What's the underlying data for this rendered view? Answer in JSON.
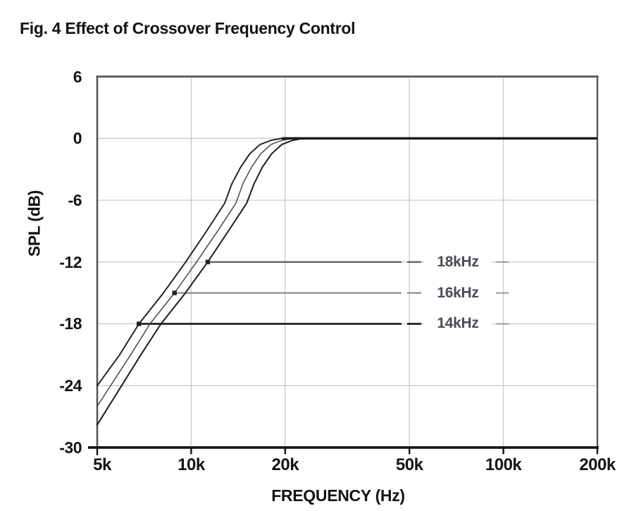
{
  "figure_title": "Fig. 4 Effect of Crossover Frequency Control",
  "chart_data": {
    "type": "line",
    "title": "Fig. 4 Effect of Crossover Frequency Control",
    "xlabel": "FREQUENCY (Hz)",
    "ylabel": "SPL (dB)",
    "x_scale": "log",
    "xlim": [
      5000,
      200000
    ],
    "ylim": [
      -30,
      6
    ],
    "grid": true,
    "x_ticks": [
      {
        "value": 5000,
        "label": "5k"
      },
      {
        "value": 10000,
        "label": "10k"
      },
      {
        "value": 20000,
        "label": "20k"
      },
      {
        "value": 50000,
        "label": "50k"
      },
      {
        "value": 100000,
        "label": "100k"
      },
      {
        "value": 200000,
        "label": "200k"
      }
    ],
    "y_ticks": [
      {
        "value": 6,
        "label": "6"
      },
      {
        "value": 0,
        "label": "0"
      },
      {
        "value": -6,
        "label": "-6"
      },
      {
        "value": -12,
        "label": "-12"
      },
      {
        "value": -18,
        "label": "-18"
      },
      {
        "value": -24,
        "label": "-24"
      },
      {
        "value": -30,
        "label": "-30"
      }
    ],
    "series": [
      {
        "name": "14kHz",
        "color": "#1c1c1c",
        "width": 1.9,
        "points": [
          [
            5000,
            -24
          ],
          [
            5900,
            -21
          ],
          [
            6800,
            -18
          ],
          [
            8150,
            -15
          ],
          [
            9600,
            -12
          ],
          [
            11200,
            -9
          ],
          [
            12800,
            -6.3
          ],
          [
            13500,
            -4.4
          ],
          [
            14400,
            -2.8
          ],
          [
            15400,
            -1.5
          ],
          [
            16600,
            -0.6
          ],
          [
            18000,
            -0.2
          ],
          [
            19500,
            0
          ]
        ]
      },
      {
        "name": "16kHz",
        "color": "#464646",
        "width": 1.5,
        "points": [
          [
            5000,
            -26
          ],
          [
            6400,
            -21
          ],
          [
            7380,
            -18
          ],
          [
            8840,
            -15
          ],
          [
            10400,
            -12
          ],
          [
            12150,
            -9
          ],
          [
            13900,
            -6.3
          ],
          [
            14650,
            -4.4
          ],
          [
            15600,
            -2.8
          ],
          [
            16700,
            -1.5
          ],
          [
            18000,
            -0.6
          ],
          [
            19500,
            -0.2
          ],
          [
            21200,
            0
          ]
        ]
      },
      {
        "name": "18kHz",
        "color": "#1c1c1c",
        "width": 2.0,
        "points": [
          [
            5000,
            -27.8
          ],
          [
            6900,
            -21
          ],
          [
            8000,
            -18
          ],
          [
            9580,
            -15
          ],
          [
            11300,
            -12
          ],
          [
            13150,
            -9
          ],
          [
            15050,
            -6.3
          ],
          [
            15900,
            -4.4
          ],
          [
            16900,
            -2.8
          ],
          [
            18100,
            -1.5
          ],
          [
            19500,
            -0.6
          ],
          [
            21100,
            -0.2
          ],
          [
            22900,
            0
          ]
        ]
      }
    ],
    "plateau": {
      "from_hz": 19500,
      "to_hz": 200000,
      "db": 0,
      "color": "#181818"
    },
    "annotations": [
      {
        "label": "18kHz",
        "db": -12,
        "marker_hz": 11300,
        "line_to_hz": 55000,
        "line_color": "#6a6a6a",
        "line_width": 2.5
      },
      {
        "label": "16kHz",
        "db": -15,
        "marker_hz": 8840,
        "line_to_hz": 55000,
        "line_color": "#8c8c8c",
        "line_width": 2.2
      },
      {
        "label": "14kHz",
        "db": -18,
        "marker_hz": 6800,
        "line_to_hz": 55000,
        "line_color": "#2b2b2b",
        "line_width": 2.9
      }
    ],
    "legend_position": "inside-right",
    "axis_colors": {
      "frame": "#565656",
      "bottom_axis": "#131313",
      "gridline": "#c9c9c9"
    }
  }
}
